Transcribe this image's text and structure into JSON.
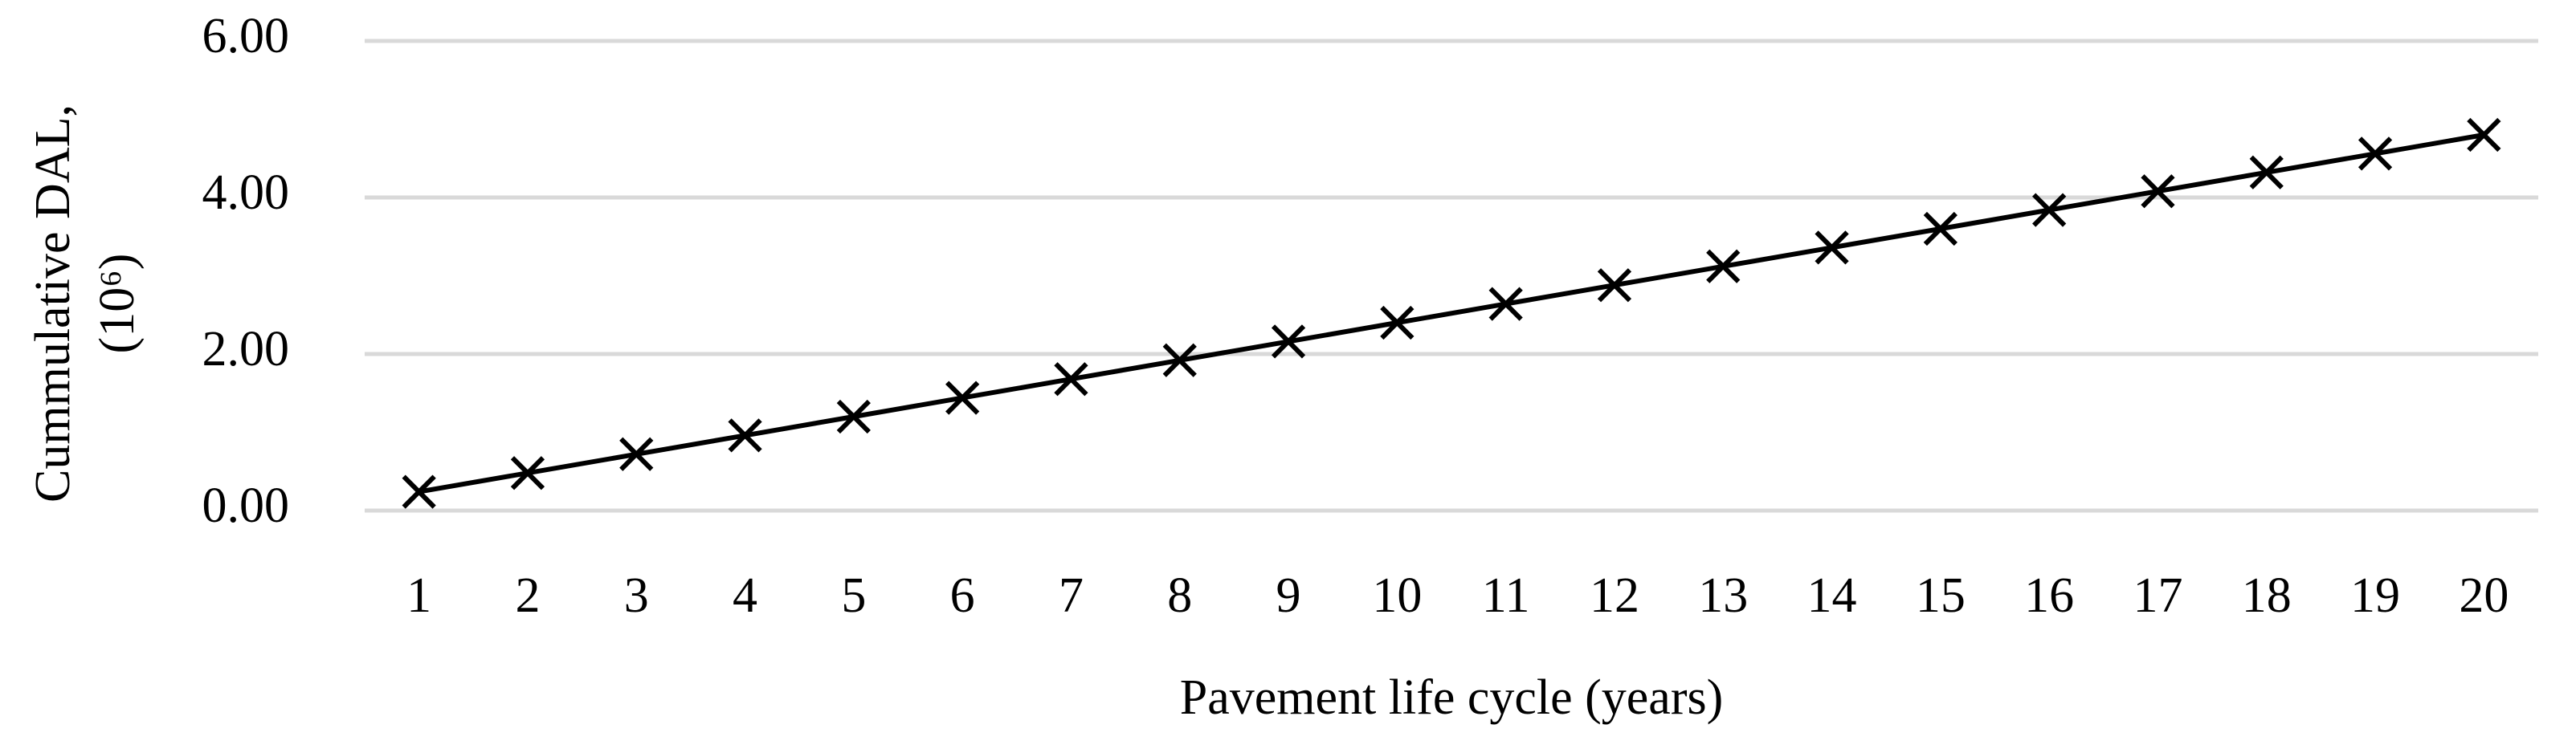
{
  "chart_data": {
    "type": "line",
    "x_label": "Pavement life cycle (years)",
    "y_label": [
      "Cummulative DAL,",
      "(10⁶)"
    ],
    "categories": [
      "1",
      "2",
      "3",
      "4",
      "5",
      "6",
      "7",
      "8",
      "9",
      "10",
      "11",
      "12",
      "13",
      "14",
      "15",
      "16",
      "17",
      "18",
      "19",
      "20"
    ],
    "series": [
      {
        "color": "#000000",
        "marker": "x",
        "values": [
          0.24,
          0.48,
          0.72,
          0.96,
          1.2,
          1.44,
          1.68,
          1.92,
          2.16,
          2.4,
          2.64,
          2.88,
          3.12,
          3.36,
          3.6,
          3.84,
          4.08,
          4.32,
          4.56,
          4.8
        ]
      }
    ],
    "ylim": [
      0,
      6
    ],
    "yticks": [
      {
        "value": 0,
        "label": "0.00"
      },
      {
        "value": 2,
        "label": "2.00"
      },
      {
        "value": 4,
        "label": "4.00"
      },
      {
        "value": 6,
        "label": "6.00"
      }
    ],
    "grid": true,
    "grid_color": "#d9d9d9"
  }
}
